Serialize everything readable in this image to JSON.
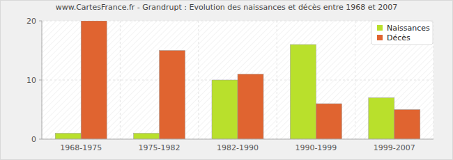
{
  "chart_data": {
    "type": "bar",
    "title": "www.CartesFrance.fr - Grandrupt : Evolution des naissances et décès entre 1968 et 2007",
    "categories": [
      "1968-1975",
      "1975-1982",
      "1982-1990",
      "1990-1999",
      "1999-2007"
    ],
    "series": [
      {
        "name": "Naissances",
        "color": "#b9e02c",
        "values": [
          1,
          1,
          10,
          16,
          7
        ]
      },
      {
        "name": "Décès",
        "color": "#e06430",
        "values": [
          20,
          15,
          11,
          6,
          5
        ]
      }
    ],
    "ylim": [
      0,
      20
    ],
    "yticks": [
      0,
      10,
      20
    ],
    "grid": true,
    "legend": "top-right"
  }
}
